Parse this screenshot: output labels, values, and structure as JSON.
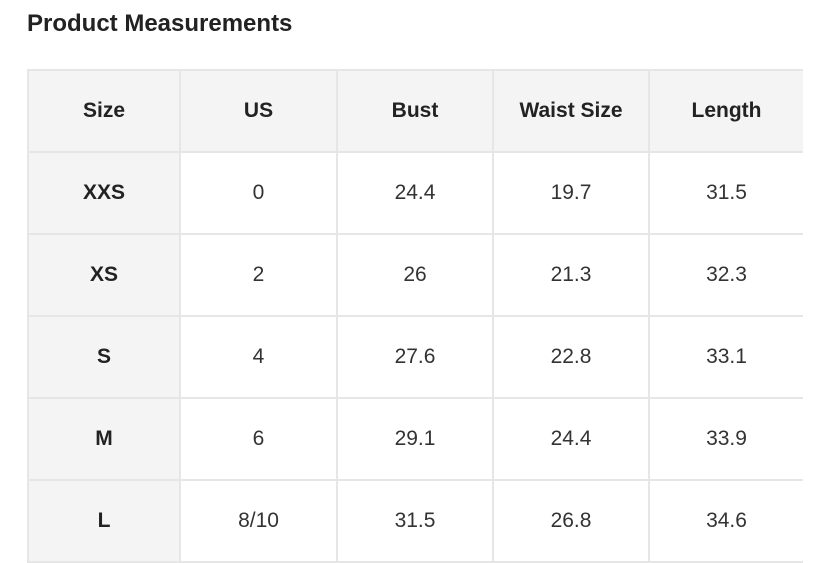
{
  "title": "Product Measurements",
  "headers": [
    "Size",
    "US",
    "Bust",
    "Waist Size",
    "Length"
  ],
  "rows": [
    [
      "XXS",
      "0",
      "24.4",
      "19.7",
      "31.5"
    ],
    [
      "XS",
      "2",
      "26",
      "21.3",
      "32.3"
    ],
    [
      "S",
      "4",
      "27.6",
      "22.8",
      "33.1"
    ],
    [
      "M",
      "6",
      "29.1",
      "24.4",
      "33.9"
    ],
    [
      "L",
      "8/10",
      "31.5",
      "26.8",
      "34.6"
    ]
  ]
}
